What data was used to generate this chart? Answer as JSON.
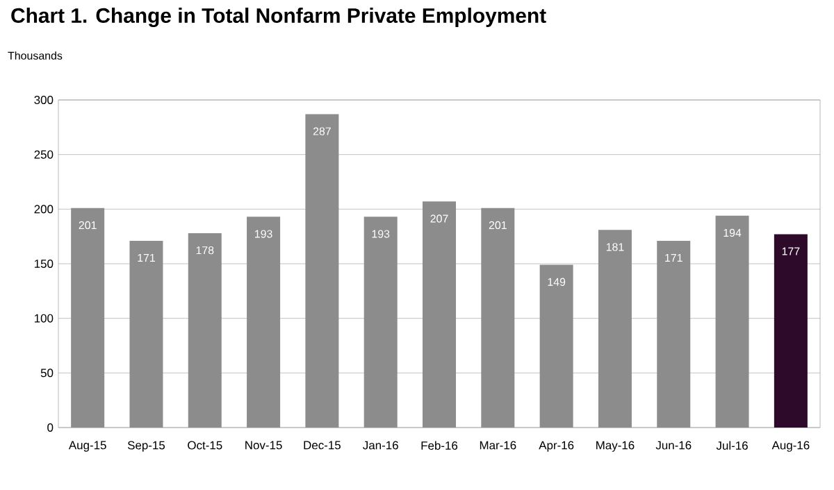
{
  "chart_data": {
    "type": "bar",
    "title": "Chart 1. Change in Total Nonfarm Private Employment",
    "ylabel": "Thousands",
    "categories": [
      "Aug-15",
      "Sep-15",
      "Oct-15",
      "Nov-15",
      "Dec-15",
      "Jan-16",
      "Feb-16",
      "Mar-16",
      "Apr-16",
      "May-16",
      "Jun-16",
      "Jul-16",
      "Aug-16"
    ],
    "values": [
      201,
      171,
      178,
      193,
      287,
      193,
      207,
      201,
      149,
      181,
      171,
      194,
      177
    ],
    "colors": [
      "#8c8c8c",
      "#8c8c8c",
      "#8c8c8c",
      "#8c8c8c",
      "#8c8c8c",
      "#8c8c8c",
      "#8c8c8c",
      "#8c8c8c",
      "#8c8c8c",
      "#8c8c8c",
      "#8c8c8c",
      "#8c8c8c",
      "#2e0a2a"
    ],
    "ylim": [
      0,
      300
    ],
    "yticks": [
      0,
      50,
      100,
      150,
      200,
      250,
      300
    ],
    "grid": "y",
    "data_labels": true
  }
}
